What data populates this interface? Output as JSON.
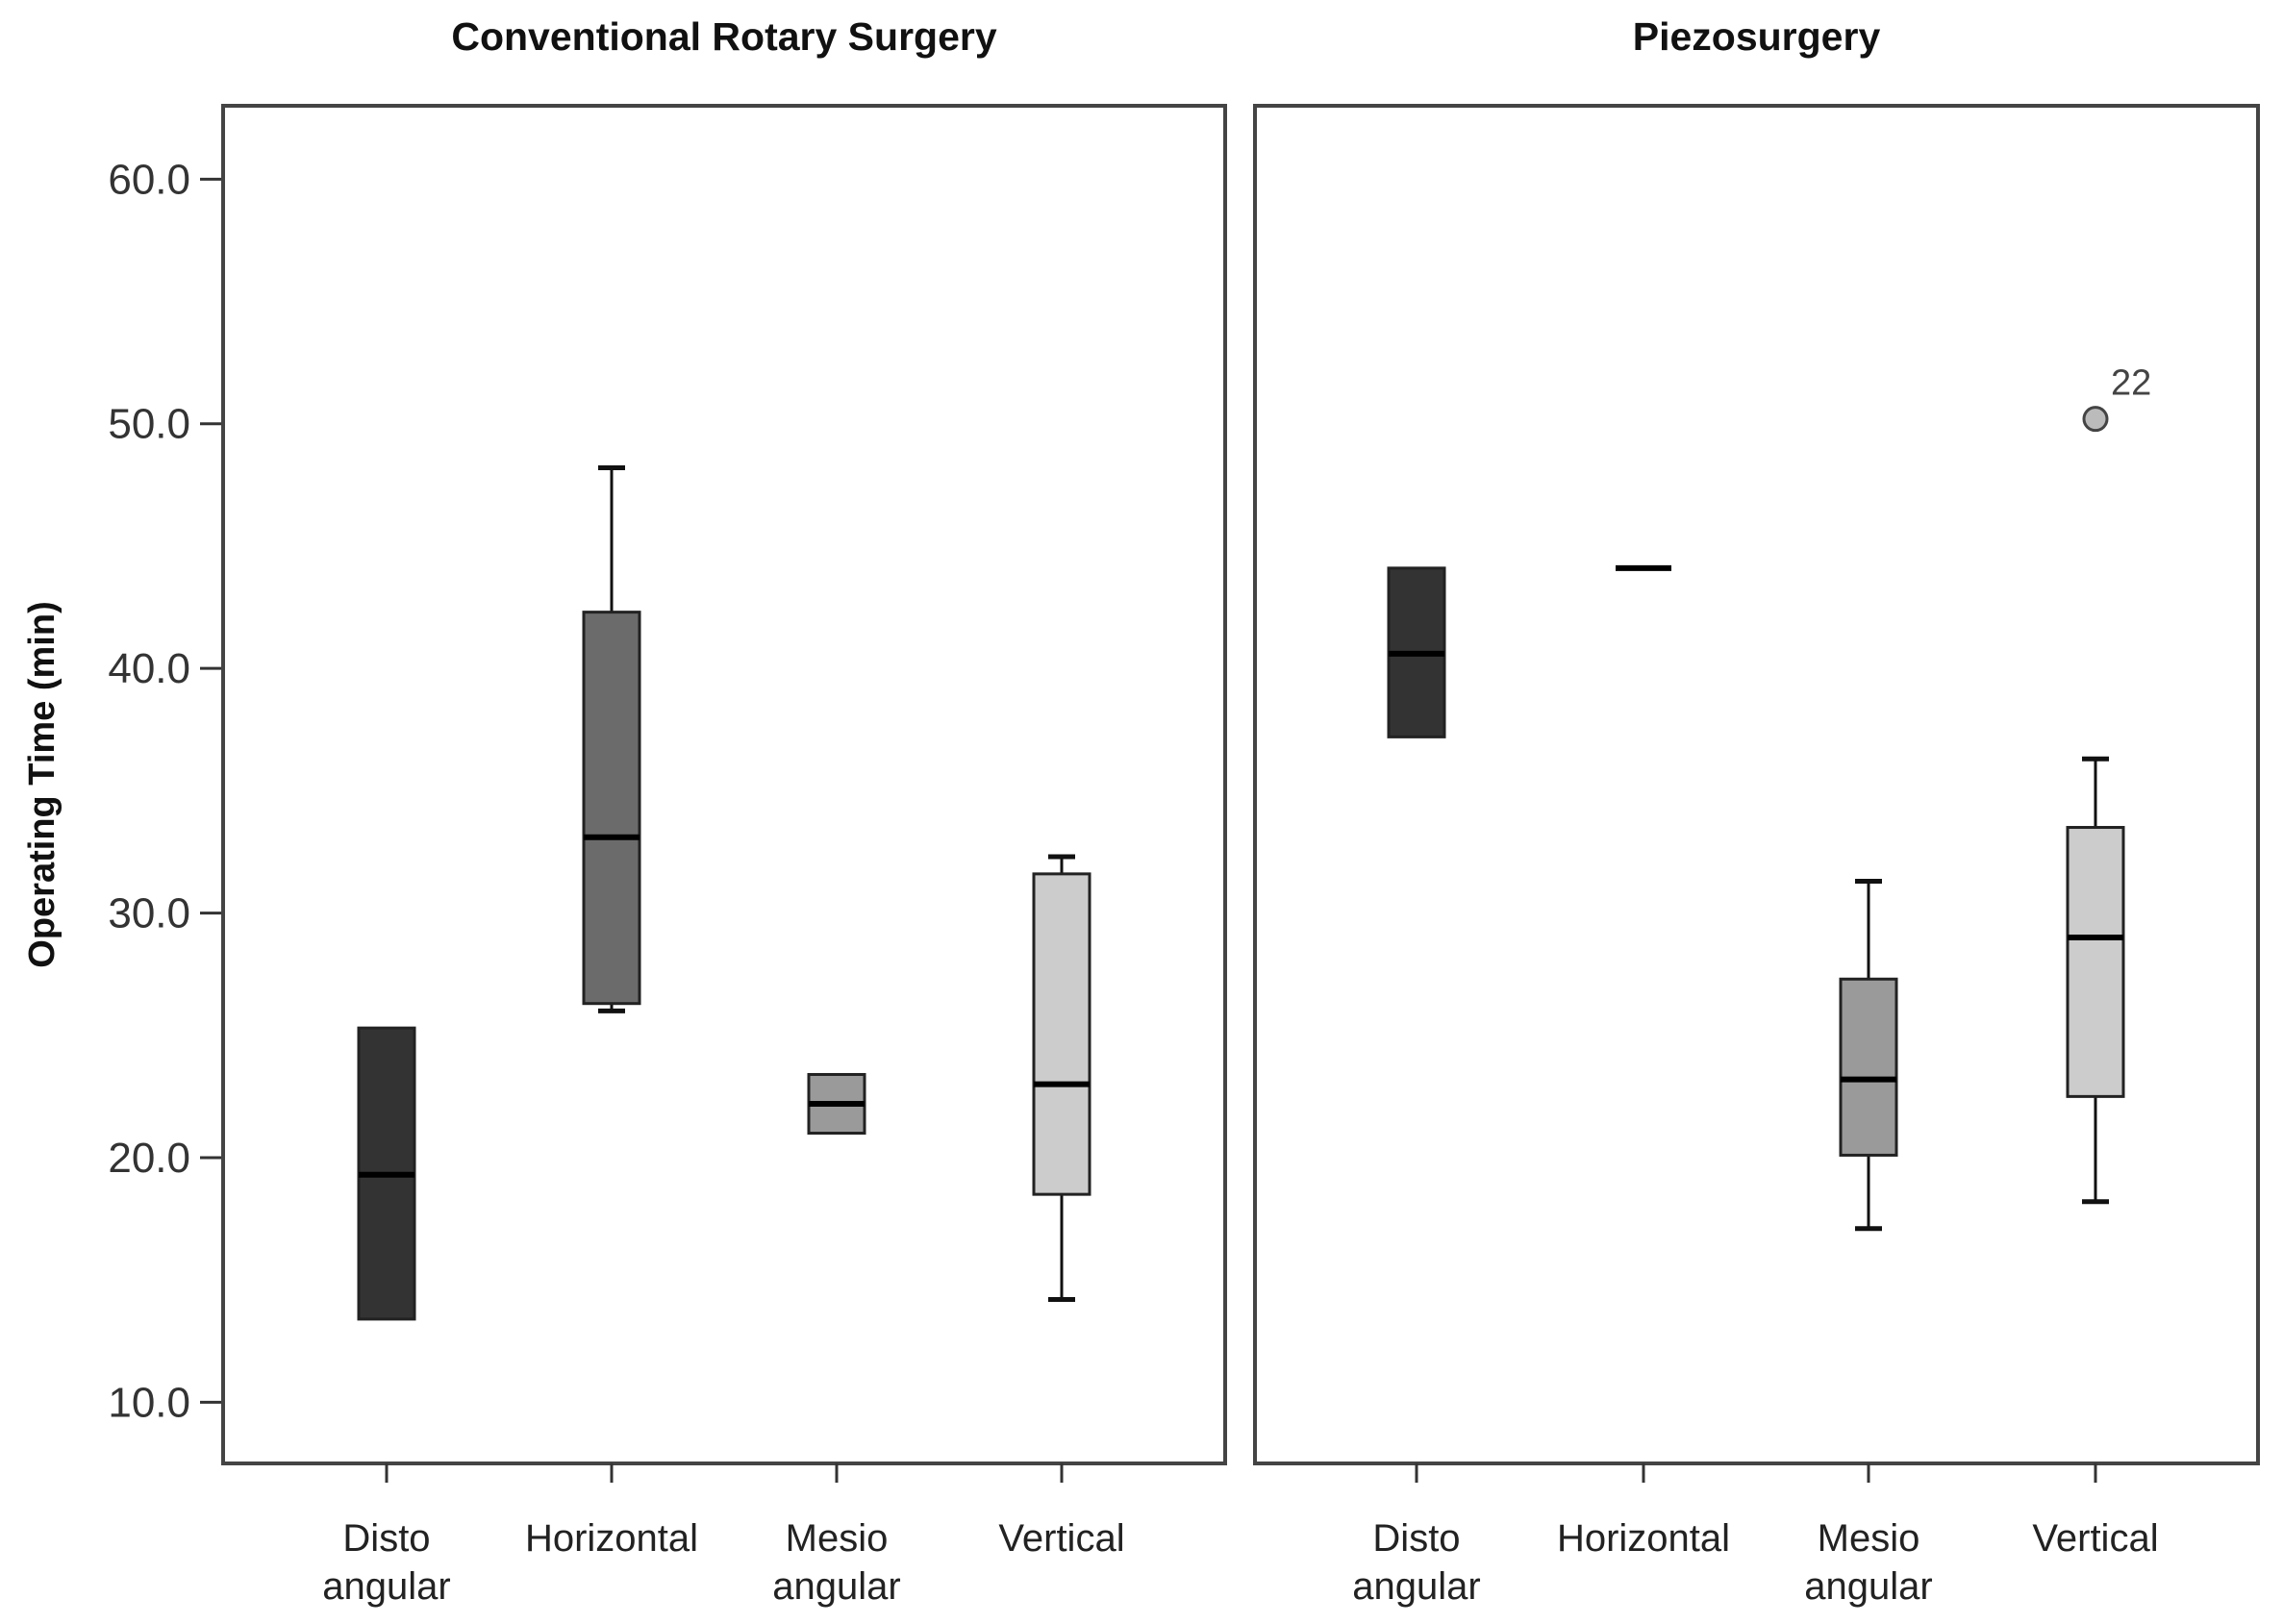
{
  "chart_data": {
    "type": "boxplot",
    "ylabel": "Operating  Time  (min)",
    "ylim": [
      7.5,
      63
    ],
    "yticks": [
      10,
      20,
      30,
      40,
      50,
      60
    ],
    "ytick_labels": [
      "10.0",
      "20.0",
      "30.0",
      "40.0",
      "50.0",
      "60.0"
    ],
    "category_labels": [
      [
        "Disto",
        "angular"
      ],
      [
        "Horizontal"
      ],
      [
        "Mesio",
        "angular"
      ],
      [
        "Vertical"
      ]
    ],
    "category_colors": [
      "#333333",
      "#6b6b6b",
      "#9a9a9a",
      "#cccccc"
    ],
    "panels": [
      {
        "title": "Conventional Rotary Surgery",
        "boxes": [
          {
            "category": "Disto angular",
            "min": 13.4,
            "q1": 13.4,
            "median": 19.3,
            "q3": 25.3,
            "max": 25.3
          },
          {
            "category": "Horizontal",
            "min": 26.0,
            "q1": 26.3,
            "median": 33.1,
            "q3": 42.3,
            "max": 48.2
          },
          {
            "category": "Mesio angular",
            "min": 21.0,
            "q1": 21.0,
            "median": 22.2,
            "q3": 23.4,
            "max": 23.4
          },
          {
            "category": "Vertical",
            "min": 14.2,
            "q1": 18.5,
            "median": 23.0,
            "q3": 31.6,
            "max": 32.3
          }
        ],
        "outliers": []
      },
      {
        "title": "Piezosurgery",
        "boxes": [
          {
            "category": "Disto angular",
            "min": 37.2,
            "q1": 37.2,
            "median": 40.6,
            "q3": 44.1,
            "max": 44.1
          },
          {
            "category": "Horizontal",
            "min": 44.1,
            "q1": 44.1,
            "median": 44.1,
            "q3": 44.1,
            "max": 44.1
          },
          {
            "category": "Mesio angular",
            "min": 17.1,
            "q1": 20.1,
            "median": 23.2,
            "q3": 27.3,
            "max": 31.3
          },
          {
            "category": "Vertical",
            "min": 18.2,
            "q1": 22.5,
            "median": 29.0,
            "q3": 33.5,
            "max": 36.3
          }
        ],
        "outliers": [
          {
            "category": "Vertical",
            "value": 50.2,
            "label": "22"
          }
        ]
      }
    ]
  }
}
